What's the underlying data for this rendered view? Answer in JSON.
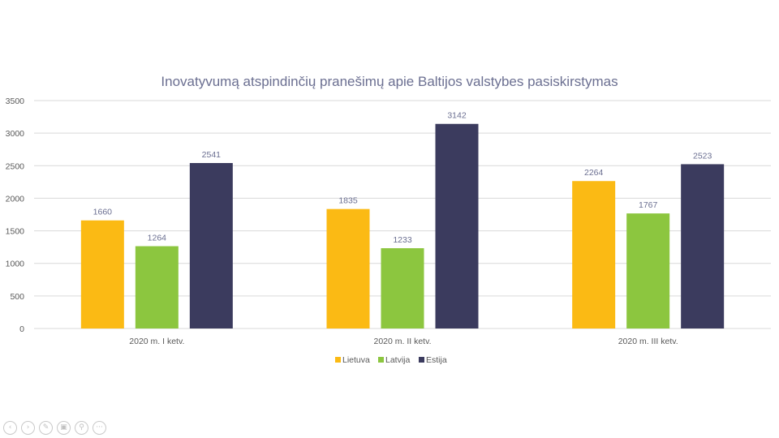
{
  "chart_data": {
    "type": "bar",
    "title": "Inovatyvumą atspindinčių pranešimų apie Baltijos valstybes pasiskirstymas",
    "categories": [
      "2020 m. I ketv.",
      "2020 m. II ketv.",
      "2020 m. III ketv."
    ],
    "series": [
      {
        "name": "Lietuva",
        "color": "#fbba14",
        "values": [
          1660,
          1835,
          2264
        ]
      },
      {
        "name": "Latvija",
        "color": "#8cc63f",
        "values": [
          1264,
          1233,
          1767
        ]
      },
      {
        "name": "Estija",
        "color": "#3b3b5e",
        "values": [
          2541,
          3142,
          2523
        ]
      }
    ],
    "ylim": [
      0,
      3500
    ],
    "yticks": [
      0,
      500,
      1000,
      1500,
      2000,
      2500,
      3000,
      3500
    ],
    "grid": true,
    "legend_position": "bottom",
    "data_labels": true
  },
  "toolbar": {
    "icons": [
      "previous-icon",
      "next-icon",
      "pen-icon",
      "slides-icon",
      "zoom-icon",
      "more-icon"
    ]
  }
}
